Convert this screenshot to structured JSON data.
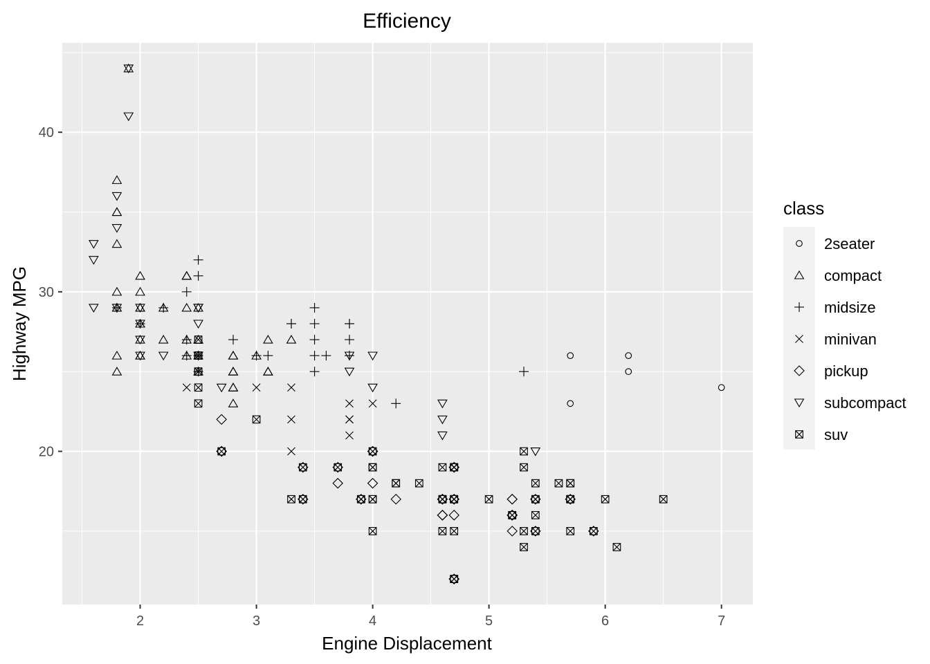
{
  "chart_data": {
    "type": "scatter",
    "title": "Efficiency",
    "xlabel": "Engine Displacement",
    "ylabel": "Highway MPG",
    "xlim": [
      1.33,
      7.27
    ],
    "ylim": [
      10.4,
      45.6
    ],
    "x_ticks": [
      2,
      3,
      4,
      5,
      6,
      7
    ],
    "y_ticks": [
      20,
      30,
      40
    ],
    "grid": true,
    "legend": {
      "title": "class",
      "position": "right",
      "entries": [
        {
          "name": "2seater",
          "shape": "circle"
        },
        {
          "name": "compact",
          "shape": "triangle-up"
        },
        {
          "name": "midsize",
          "shape": "plus"
        },
        {
          "name": "minivan",
          "shape": "cross"
        },
        {
          "name": "pickup",
          "shape": "diamond"
        },
        {
          "name": "subcompact",
          "shape": "triangle-down"
        },
        {
          "name": "suv",
          "shape": "square-cross"
        }
      ]
    },
    "series": [
      {
        "name": "2seater",
        "points": [
          [
            5.7,
            26
          ],
          [
            5.7,
            23
          ],
          [
            6.2,
            26
          ],
          [
            6.2,
            25
          ],
          [
            7.0,
            24
          ]
        ]
      },
      {
        "name": "compact",
        "points": [
          [
            1.8,
            29
          ],
          [
            1.8,
            29
          ],
          [
            2.0,
            31
          ],
          [
            2.0,
            30
          ],
          [
            2.8,
            26
          ],
          [
            2.8,
            26
          ],
          [
            3.1,
            27
          ],
          [
            1.8,
            26
          ],
          [
            1.8,
            25
          ],
          [
            2.0,
            28
          ],
          [
            2.0,
            27
          ],
          [
            2.8,
            25
          ],
          [
            2.8,
            25
          ],
          [
            3.1,
            25
          ],
          [
            3.1,
            25
          ],
          [
            1.8,
            30
          ],
          [
            1.8,
            33
          ],
          [
            1.8,
            35
          ],
          [
            1.8,
            37
          ],
          [
            1.8,
            35
          ],
          [
            2.2,
            29
          ],
          [
            2.2,
            27
          ],
          [
            2.4,
            31
          ],
          [
            2.4,
            31
          ],
          [
            3.0,
            26
          ],
          [
            3.3,
            27
          ],
          [
            2.4,
            29
          ],
          [
            2.5,
            29
          ],
          [
            2.5,
            27
          ],
          [
            2.8,
            24
          ],
          [
            2.8,
            23
          ],
          [
            1.9,
            44
          ],
          [
            2.0,
            29
          ],
          [
            2.0,
            26
          ],
          [
            2.0,
            29
          ],
          [
            2.8,
            24
          ],
          [
            2.0,
            28
          ],
          [
            2.5,
            27
          ],
          [
            2.0,
            26
          ],
          [
            2.4,
            27
          ],
          [
            2.4,
            26
          ],
          [
            2.5,
            25
          ],
          [
            2.5,
            26
          ]
        ]
      },
      {
        "name": "midsize",
        "points": [
          [
            2.4,
            30
          ],
          [
            2.4,
            26
          ],
          [
            3.1,
            26
          ],
          [
            3.5,
            29
          ],
          [
            3.6,
            26
          ],
          [
            2.4,
            27
          ],
          [
            3.0,
            26
          ],
          [
            3.3,
            28
          ],
          [
            3.8,
            28
          ],
          [
            2.5,
            32
          ],
          [
            2.5,
            31
          ],
          [
            3.5,
            28
          ],
          [
            3.5,
            27
          ],
          [
            2.5,
            26
          ],
          [
            2.5,
            25
          ],
          [
            3.5,
            26
          ],
          [
            3.5,
            25
          ],
          [
            5.3,
            25
          ],
          [
            3.8,
            26
          ],
          [
            3.8,
            27
          ],
          [
            3.8,
            28
          ],
          [
            4.2,
            23
          ],
          [
            1.8,
            29
          ],
          [
            2.0,
            28
          ],
          [
            2.2,
            29
          ],
          [
            2.8,
            27
          ],
          [
            3.3,
            28
          ]
        ]
      },
      {
        "name": "minivan",
        "points": [
          [
            2.4,
            24
          ],
          [
            3.0,
            24
          ],
          [
            3.3,
            22
          ],
          [
            3.3,
            24
          ],
          [
            3.8,
            21
          ],
          [
            3.8,
            22
          ],
          [
            3.8,
            23
          ],
          [
            4.0,
            23
          ],
          [
            3.3,
            20
          ],
          [
            3.8,
            22
          ],
          [
            4.0,
            20
          ]
        ]
      },
      {
        "name": "pickup",
        "points": [
          [
            2.7,
            22
          ],
          [
            2.7,
            20
          ],
          [
            2.7,
            20
          ],
          [
            3.4,
            19
          ],
          [
            3.4,
            17
          ],
          [
            4.0,
            20
          ],
          [
            4.0,
            20
          ],
          [
            4.7,
            17
          ],
          [
            4.7,
            16
          ],
          [
            4.7,
            19
          ],
          [
            4.7,
            12
          ],
          [
            5.2,
            17
          ],
          [
            5.2,
            15
          ],
          [
            3.9,
            17
          ],
          [
            3.7,
            19
          ],
          [
            4.7,
            19
          ],
          [
            4.7,
            12
          ],
          [
            5.2,
            16
          ],
          [
            5.2,
            16
          ],
          [
            5.7,
            17
          ],
          [
            5.9,
            15
          ],
          [
            4.6,
            16
          ],
          [
            4.6,
            17
          ],
          [
            5.4,
            17
          ],
          [
            5.4,
            15
          ],
          [
            3.7,
            18
          ],
          [
            4.0,
            18
          ],
          [
            4.2,
            17
          ],
          [
            4.6,
            17
          ],
          [
            4.6,
            16
          ],
          [
            4.7,
            17
          ],
          [
            5.2,
            16
          ],
          [
            5.2,
            17
          ]
        ]
      },
      {
        "name": "subcompact",
        "points": [
          [
            3.8,
            26
          ],
          [
            3.8,
            25
          ],
          [
            4.0,
            26
          ],
          [
            4.0,
            24
          ],
          [
            4.6,
            21
          ],
          [
            4.6,
            22
          ],
          [
            4.6,
            23
          ],
          [
            5.4,
            20
          ],
          [
            1.6,
            33
          ],
          [
            1.6,
            32
          ],
          [
            1.6,
            29
          ],
          [
            1.8,
            29
          ],
          [
            1.8,
            34
          ],
          [
            1.8,
            36
          ],
          [
            2.0,
            29
          ],
          [
            2.0,
            26
          ],
          [
            2.0,
            27
          ],
          [
            2.0,
            28
          ],
          [
            2.5,
            26
          ],
          [
            2.5,
            29
          ],
          [
            2.2,
            26
          ],
          [
            1.9,
            44
          ],
          [
            1.9,
            41
          ],
          [
            2.5,
            28
          ],
          [
            2.5,
            29
          ],
          [
            2.7,
            24
          ]
        ]
      },
      {
        "name": "suv",
        "points": [
          [
            5.3,
            20
          ],
          [
            5.3,
            15
          ],
          [
            5.7,
            17
          ],
          [
            6.5,
            17
          ],
          [
            4.2,
            18
          ],
          [
            5.7,
            17
          ],
          [
            4.7,
            19
          ],
          [
            4.7,
            17
          ],
          [
            4.7,
            12
          ],
          [
            5.2,
            16
          ],
          [
            5.7,
            18
          ],
          [
            5.9,
            15
          ],
          [
            4.7,
            17
          ],
          [
            4.7,
            12
          ],
          [
            4.7,
            19
          ],
          [
            5.7,
            17
          ],
          [
            6.1,
            14
          ],
          [
            4.0,
            19
          ],
          [
            4.2,
            18
          ],
          [
            4.6,
            17
          ],
          [
            5.4,
            17
          ],
          [
            5.4,
            18
          ],
          [
            5.4,
            16
          ],
          [
            4.0,
            17
          ],
          [
            4.0,
            19
          ],
          [
            4.6,
            17
          ],
          [
            5.0,
            17
          ],
          [
            2.5,
            23
          ],
          [
            2.5,
            25
          ],
          [
            2.5,
            24
          ],
          [
            4.6,
            15
          ],
          [
            4.6,
            17
          ],
          [
            4.7,
            19
          ],
          [
            5.4,
            15
          ],
          [
            5.3,
            19
          ],
          [
            5.3,
            14
          ],
          [
            5.6,
            18
          ],
          [
            5.4,
            17
          ],
          [
            3.3,
            17
          ],
          [
            4.0,
            15
          ],
          [
            3.0,
            22
          ],
          [
            3.9,
            17
          ],
          [
            4.0,
            20
          ],
          [
            4.4,
            18
          ],
          [
            4.6,
            19
          ],
          [
            5.7,
            15
          ],
          [
            6.0,
            17
          ],
          [
            3.4,
            19
          ],
          [
            3.4,
            17
          ],
          [
            2.7,
            20
          ],
          [
            3.7,
            19
          ],
          [
            4.7,
            15
          ],
          [
            4.0,
            17
          ],
          [
            2.5,
            26
          ],
          [
            2.5,
            25
          ],
          [
            2.5,
            27
          ],
          [
            2.5,
            26
          ],
          [
            4.7,
            17
          ],
          [
            4.7,
            19
          ],
          [
            5.7,
            18
          ],
          [
            3.9,
            17
          ],
          [
            5.2,
            16
          ]
        ]
      }
    ]
  }
}
